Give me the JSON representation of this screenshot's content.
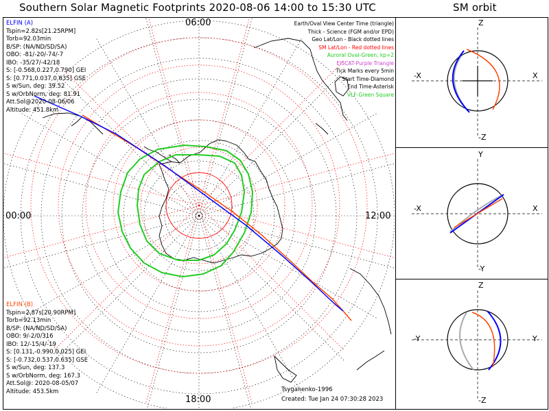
{
  "header": {
    "title": "Southern Solar Magnetic Footprints 2020-08-06 14:00 to 15:30 UTC",
    "orbit_title": "SM orbit"
  },
  "hours": {
    "top": "06:00",
    "left": "00:00",
    "right": "12:00",
    "bottom": "18:00"
  },
  "elfin_a": {
    "name": "ELFIN (A)",
    "color": "#0000ff",
    "lines": [
      "Tspin=2.82s[21.25RPM]",
      "Torb=92.03min",
      "B/SP: (NA/ND/SD/SA)",
      "OBO: -81/-20/-74/-7",
      "IBO: -35/27/-42/18",
      "S: [-0.568,0.227,0.790] GEI",
      "S: [0.771,0.037,0.635] GSE",
      "S w/Sun, deg: 39.52",
      "S w/OrbNorm, deg: 81.91",
      "Att.Sol@2020-08-06/06",
      "Altitude: 451.8km"
    ]
  },
  "elfin_b": {
    "name": "ELFIN (B)",
    "color": "#ff4400",
    "lines": [
      "Tspin=2.87s[20.90RPM]",
      "Torb=92.13min",
      "B/SP: (NA/ND/SD/SA)",
      "OBO: 9/-2/0/316",
      "IBO: 12/-15/4/-19",
      "S: [0.131,-0.990,0.025] GEI",
      "S: [-0.732,0.537,0.635] GSE",
      "S w/Sun, deg: 137.3",
      "S w/OrbNorm, deg: 167.3",
      "Att.Sol@: 2020-08-05/07",
      "Altitude: 453.5km"
    ]
  },
  "legend": [
    {
      "text": "Earth/Oval View Center Time (triangle)",
      "color": "#000000"
    },
    {
      "text": "Thick - Science (FGM and/or EPD)",
      "color": "#000000"
    },
    {
      "text": "Geo Lat/Lon - Black dotted lines",
      "color": "#000000"
    },
    {
      "text": "SM Lat/Lon - Red dotted lines",
      "color": "#ff0000"
    },
    {
      "text": "Auroral Oval-Green, kp=2",
      "color": "#22cc22"
    },
    {
      "text": "EISCAT-Purple Triangle",
      "color": "#cc44cc"
    },
    {
      "text": "Tick Marks every 5min",
      "color": "#000000"
    },
    {
      "text": "Start Time-Diamond",
      "color": "#000000"
    },
    {
      "text": "End Time-Asterisk",
      "color": "#000000"
    },
    {
      "text": "VLF-Green Square",
      "color": "#22cc22"
    }
  ],
  "footer": {
    "model": "Tsyganenko-1996",
    "created": "Created: Tue Jan 24 07:30:28 2023"
  },
  "orbit_panels": [
    {
      "top": "Z",
      "bottom": "-Z",
      "left": "-X",
      "right": "X"
    },
    {
      "top": "Y",
      "bottom": "-Y",
      "left": "-X",
      "right": "X"
    },
    {
      "top": "Z",
      "bottom": "-Z",
      "left": "-Y",
      "right": "Y"
    }
  ],
  "colors": {
    "elfin_a": "#0000ff",
    "elfin_b": "#ff4400",
    "auroral_oval": "#22cc22",
    "sm_grid": "#ff0000",
    "geo_grid": "#000000"
  }
}
